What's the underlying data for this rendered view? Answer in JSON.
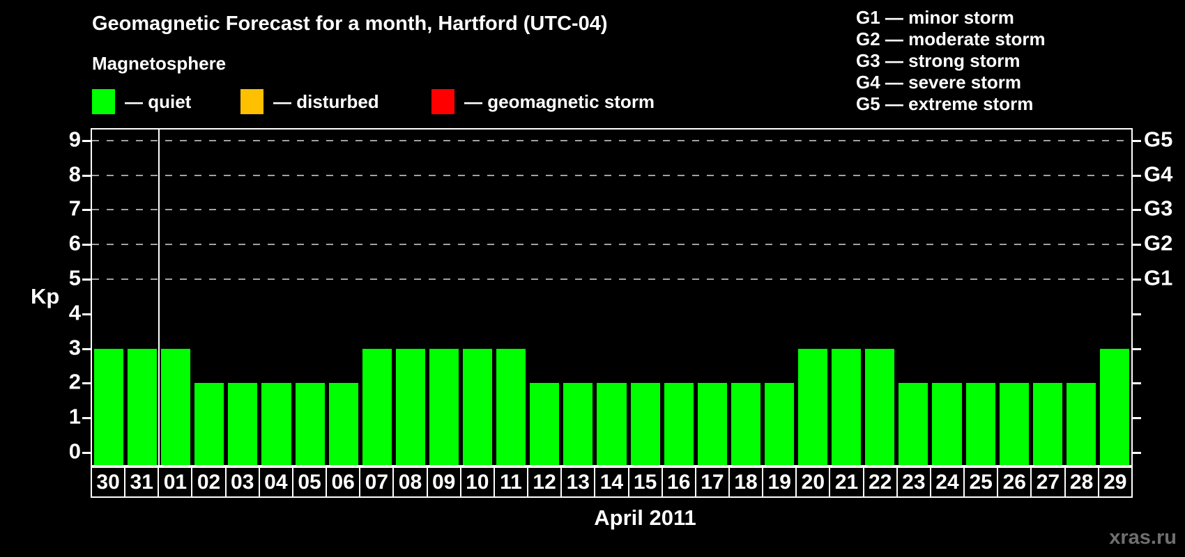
{
  "watermark": "xras.ru",
  "storm_scale": [
    "G1 — minor storm",
    "G2 — moderate storm",
    "G3 — strong storm",
    "G4 — severe storm",
    "G5 — extreme storm"
  ],
  "chart_data": {
    "type": "bar",
    "title": "Geomagnetic Forecast for a month, Hartford (UTC-04)",
    "legend_title": "Magnetosphere",
    "legend": [
      {
        "label": "— quiet",
        "color": "#00ff00"
      },
      {
        "label": "— disturbed",
        "color": "#ffc000"
      },
      {
        "label": "— geomagnetic storm",
        "color": "#ff0000"
      }
    ],
    "categories": [
      "30",
      "31",
      "01",
      "02",
      "03",
      "04",
      "05",
      "06",
      "07",
      "08",
      "09",
      "10",
      "11",
      "12",
      "13",
      "14",
      "15",
      "16",
      "17",
      "18",
      "19",
      "20",
      "21",
      "22",
      "23",
      "24",
      "25",
      "26",
      "27",
      "28",
      "29"
    ],
    "values": [
      3,
      3,
      3,
      2,
      2,
      2,
      2,
      2,
      3,
      3,
      3,
      3,
      3,
      2,
      2,
      2,
      2,
      2,
      2,
      2,
      2,
      3,
      3,
      3,
      2,
      2,
      2,
      2,
      2,
      2,
      3
    ],
    "bar_color": "#00ff00",
    "xlabel": "April 2011",
    "ylabel": "Kp",
    "ylim": [
      0,
      9
    ],
    "y_ticks": [
      0,
      1,
      2,
      3,
      4,
      5,
      6,
      7,
      8,
      9
    ],
    "right_axis_labels": [
      {
        "kp": 5,
        "label": "G1"
      },
      {
        "kp": 6,
        "label": "G2"
      },
      {
        "kp": 7,
        "label": "G3"
      },
      {
        "kp": 8,
        "label": "G4"
      },
      {
        "kp": 9,
        "label": "G5"
      }
    ],
    "gridlines_at": [
      5,
      6,
      7,
      8,
      9
    ],
    "month_boundary_index": 2,
    "grid": "dashed horizontal gridlines at Kp 5-9, legend top-right"
  }
}
